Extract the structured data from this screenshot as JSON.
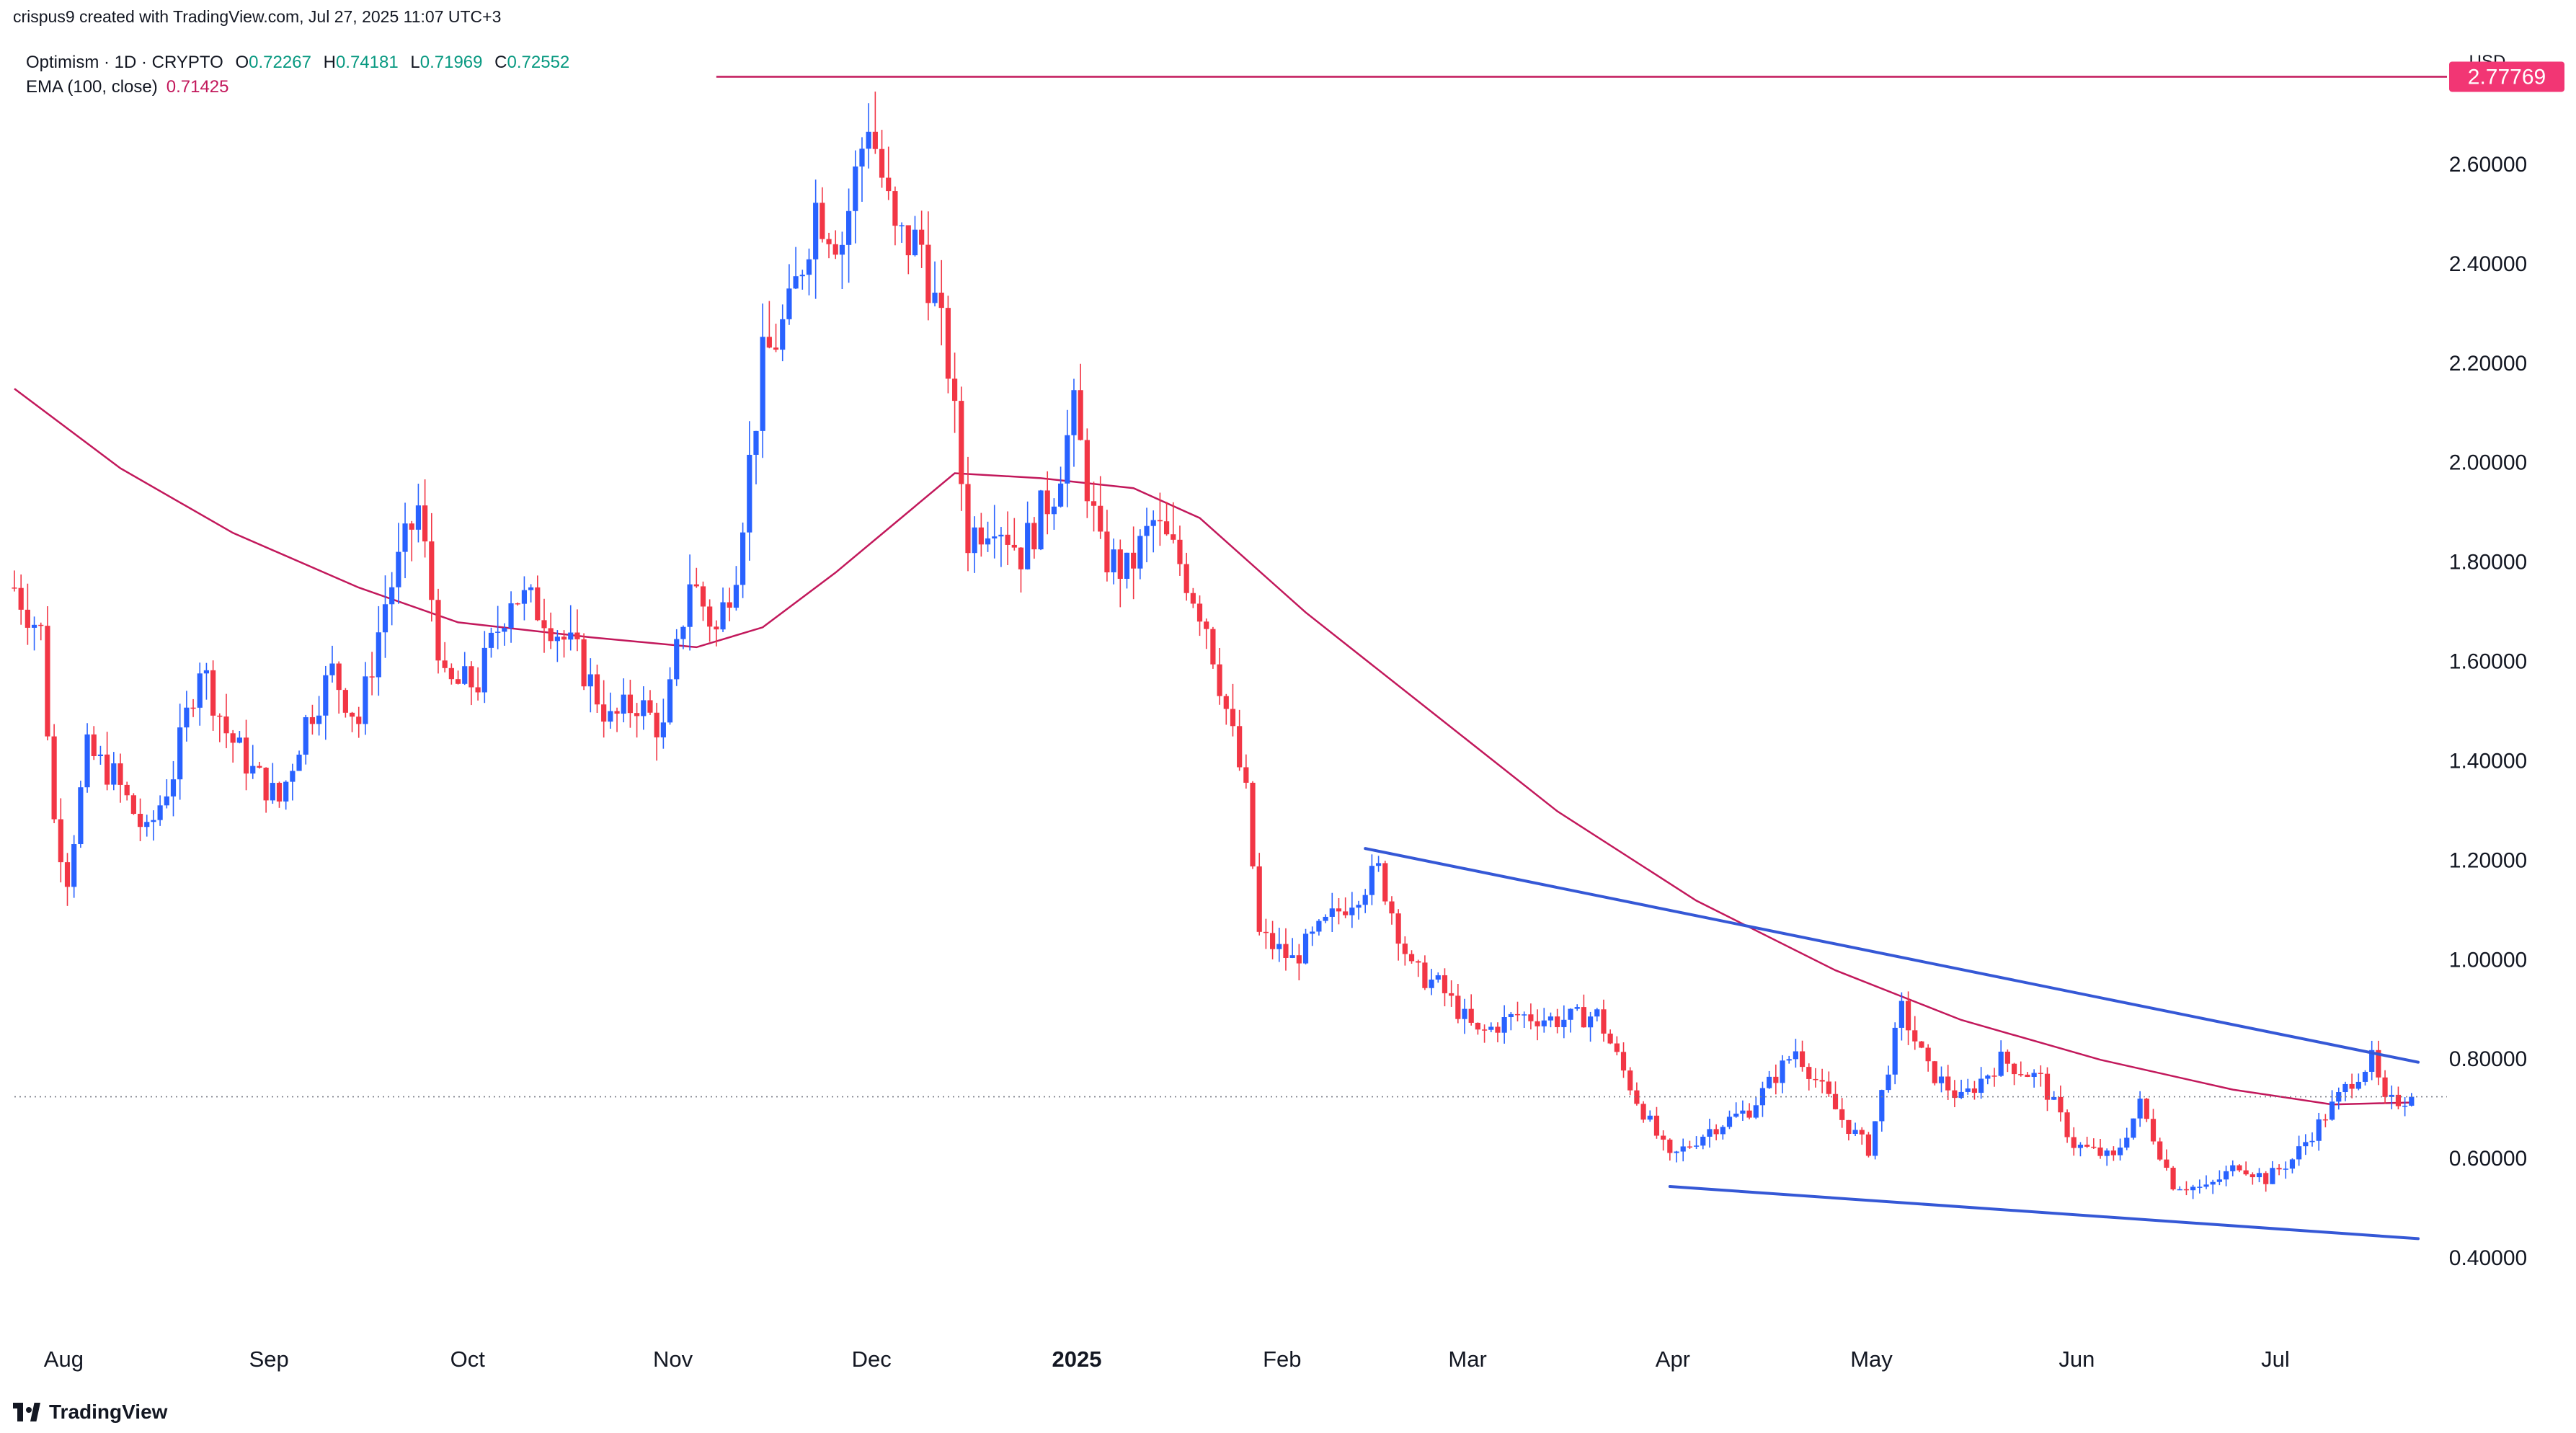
{
  "header": {
    "created_line": "crispus9 created with TradingView.com, Jul 27, 2025 11:07 UTC+3"
  },
  "legend": {
    "symbol": "Optimism · 1D · CRYPTO",
    "o_label": "O",
    "o_value": "0.72267",
    "h_label": "H",
    "h_value": "0.74181",
    "l_label": "L",
    "l_value": "0.71969",
    "c_label": "C",
    "c_value": "0.72552",
    "ema_label": "EMA (100, close)",
    "ema_value": "0.71425"
  },
  "currency": "USD",
  "footer": {
    "brand": "TradingView",
    "icon": "tradingview-logo-icon"
  },
  "chart_data": {
    "type": "candlestick",
    "symbol": "Optimism",
    "interval": "1D",
    "x_start": "2024-07-30",
    "x_end": "2025-07-27",
    "ylim": [
      0.3,
      2.98
    ],
    "yticks": [
      0.4,
      0.6,
      0.8,
      1.0,
      1.2,
      1.4,
      1.6,
      1.8,
      2.0,
      2.2,
      2.4,
      2.6
    ],
    "ytick_labels": [
      "0.40000",
      "0.60000",
      "0.80000",
      "1.00000",
      "1.20000",
      "1.40000",
      "1.60000",
      "1.80000",
      "2.00000",
      "2.20000",
      "2.40000",
      "2.60000"
    ],
    "x_labels": [
      {
        "date": "2024-08-01",
        "label": "Aug",
        "bold": false
      },
      {
        "date": "2024-09-01",
        "label": "Sep",
        "bold": false
      },
      {
        "date": "2024-10-01",
        "label": "Oct",
        "bold": false
      },
      {
        "date": "2024-11-01",
        "label": "Nov",
        "bold": false
      },
      {
        "date": "2024-12-01",
        "label": "Dec",
        "bold": false
      },
      {
        "date": "2025-01-01",
        "label": "2025",
        "bold": true
      },
      {
        "date": "2025-02-01",
        "label": "Feb",
        "bold": false
      },
      {
        "date": "2025-03-01",
        "label": "Mar",
        "bold": false
      },
      {
        "date": "2025-04-01",
        "label": "Apr",
        "bold": false
      },
      {
        "date": "2025-05-01",
        "label": "May",
        "bold": false
      },
      {
        "date": "2025-06-01",
        "label": "Jun",
        "bold": false
      },
      {
        "date": "2025-07-01",
        "label": "Jul",
        "bold": false
      }
    ],
    "close_path": [
      [
        "2024-07-30",
        1.75
      ],
      [
        "2024-08-03",
        1.66
      ],
      [
        "2024-08-05",
        1.28
      ],
      [
        "2024-08-07",
        1.17
      ],
      [
        "2024-08-10",
        1.42
      ],
      [
        "2024-08-14",
        1.37
      ],
      [
        "2024-08-19",
        1.25
      ],
      [
        "2024-08-23",
        1.38
      ],
      [
        "2024-08-27",
        1.6
      ],
      [
        "2024-08-31",
        1.46
      ],
      [
        "2024-09-04",
        1.38
      ],
      [
        "2024-09-08",
        1.32
      ],
      [
        "2024-09-12",
        1.48
      ],
      [
        "2024-09-16",
        1.58
      ],
      [
        "2024-09-20",
        1.48
      ],
      [
        "2024-09-24",
        1.72
      ],
      [
        "2024-09-29",
        1.91
      ],
      [
        "2024-10-03",
        1.55
      ],
      [
        "2024-10-08",
        1.56
      ],
      [
        "2024-10-13",
        1.74
      ],
      [
        "2024-10-18",
        1.7
      ],
      [
        "2024-10-23",
        1.61
      ],
      [
        "2024-10-28",
        1.48
      ],
      [
        "2024-11-01",
        1.52
      ],
      [
        "2024-11-05",
        1.46
      ],
      [
        "2024-11-09",
        1.77
      ],
      [
        "2024-11-13",
        1.66
      ],
      [
        "2024-11-16",
        1.8
      ],
      [
        "2024-11-20",
        2.2
      ],
      [
        "2024-11-24",
        2.3
      ],
      [
        "2024-11-28",
        2.52
      ],
      [
        "2024-12-02",
        2.45
      ],
      [
        "2024-12-06",
        2.7
      ],
      [
        "2024-12-10",
        2.45
      ],
      [
        "2024-12-14",
        2.44
      ],
      [
        "2024-12-18",
        2.2
      ],
      [
        "2024-12-21",
        1.85
      ],
      [
        "2024-12-25",
        1.9
      ],
      [
        "2024-12-29",
        1.82
      ],
      [
        "2025-01-03",
        1.95
      ],
      [
        "2025-01-06",
        2.1
      ],
      [
        "2025-01-10",
        1.82
      ],
      [
        "2025-01-14",
        1.78
      ],
      [
        "2025-01-18",
        1.88
      ],
      [
        "2025-01-22",
        1.8
      ],
      [
        "2025-01-26",
        1.68
      ],
      [
        "2025-02-01",
        1.33
      ],
      [
        "2025-02-03",
        1.05
      ],
      [
        "2025-02-08",
        1.0
      ],
      [
        "2025-02-15",
        1.1
      ],
      [
        "2025-02-21",
        1.18
      ],
      [
        "2025-02-26",
        0.98
      ],
      [
        "2025-03-02",
        0.95
      ],
      [
        "2025-03-08",
        0.85
      ],
      [
        "2025-03-14",
        0.89
      ],
      [
        "2025-03-20",
        0.88
      ],
      [
        "2025-03-26",
        0.89
      ],
      [
        "2025-04-01",
        0.72
      ],
      [
        "2025-04-06",
        0.6
      ],
      [
        "2025-04-12",
        0.66
      ],
      [
        "2025-04-18",
        0.7
      ],
      [
        "2025-04-25",
        0.82
      ],
      [
        "2025-05-02",
        0.68
      ],
      [
        "2025-05-06",
        0.62
      ],
      [
        "2025-05-11",
        0.9
      ],
      [
        "2025-05-15",
        0.78
      ],
      [
        "2025-05-20",
        0.72
      ],
      [
        "2025-05-26",
        0.8
      ],
      [
        "2025-06-01",
        0.76
      ],
      [
        "2025-06-06",
        0.63
      ],
      [
        "2025-06-12",
        0.6
      ],
      [
        "2025-06-16",
        0.71
      ],
      [
        "2025-06-21",
        0.55
      ],
      [
        "2025-06-26",
        0.54
      ],
      [
        "2025-07-01",
        0.59
      ],
      [
        "2025-07-05",
        0.56
      ],
      [
        "2025-07-09",
        0.6
      ],
      [
        "2025-07-13",
        0.67
      ],
      [
        "2025-07-18",
        0.76
      ],
      [
        "2025-07-21",
        0.8
      ],
      [
        "2025-07-23",
        0.71
      ],
      [
        "2025-07-27",
        0.7255
      ]
    ],
    "ema_path": [
      [
        "2024-07-30",
        2.15
      ],
      [
        "2024-08-15",
        1.99
      ],
      [
        "2024-09-01",
        1.86
      ],
      [
        "2024-09-20",
        1.75
      ],
      [
        "2024-10-05",
        1.68
      ],
      [
        "2024-10-25",
        1.65
      ],
      [
        "2024-11-10",
        1.63
      ],
      [
        "2024-11-20",
        1.67
      ],
      [
        "2024-12-01",
        1.78
      ],
      [
        "2024-12-10",
        1.88
      ],
      [
        "2024-12-19",
        1.98
      ],
      [
        "2025-01-01",
        1.97
      ],
      [
        "2025-01-15",
        1.95
      ],
      [
        "2025-01-25",
        1.89
      ],
      [
        "2025-02-10",
        1.7
      ],
      [
        "2025-03-01",
        1.5
      ],
      [
        "2025-03-20",
        1.3
      ],
      [
        "2025-04-10",
        1.12
      ],
      [
        "2025-05-01",
        0.98
      ],
      [
        "2025-05-20",
        0.88
      ],
      [
        "2025-06-10",
        0.8
      ],
      [
        "2025-06-30",
        0.74
      ],
      [
        "2025-07-15",
        0.71
      ],
      [
        "2025-07-27",
        0.714
      ]
    ],
    "horizontal_level": {
      "value": 2.77769,
      "label": "2.77769",
      "from": "2024-11-13"
    },
    "last_price": 0.7255,
    "trendlines": [
      {
        "name": "upper",
        "from": [
          "2025-02-19",
          1.225
        ],
        "to": [
          "2025-07-28",
          0.795
        ]
      },
      {
        "name": "lower",
        "from": [
          "2025-04-06",
          0.545
        ],
        "to": [
          "2025-07-28",
          0.44
        ]
      }
    ],
    "colors": {
      "up": "#2962ff",
      "down": "#f23645",
      "ema": "#c2185b",
      "trendline": "#3558d6",
      "level": "#c2185b",
      "level_label_bg": "#f23674"
    },
    "grid": false
  }
}
